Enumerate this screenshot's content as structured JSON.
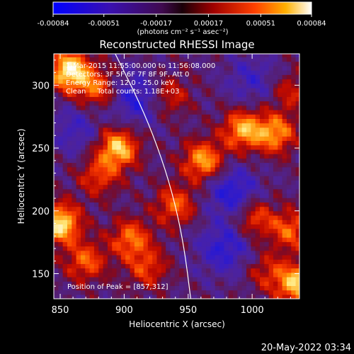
{
  "chart_data": {
    "type": "heatmap",
    "title": "Reconstructed RHESSI Image",
    "xlabel": "Heliocentric X (arcsec)",
    "ylabel": "Heliocentric Y (arcsec)",
    "xlim": [
      845,
      1037
    ],
    "ylim": [
      130,
      325
    ],
    "xticks": [
      850,
      900,
      950,
      1000
    ],
    "yticks": [
      150,
      200,
      250,
      300
    ],
    "colorbar": {
      "ticks": [
        "-0.00084",
        "-0.00051",
        "-0.00017",
        "0.00017",
        "0.00051",
        "0.00084"
      ],
      "units": "(photons cm⁻² s⁻¹ asec⁻²)",
      "range": [
        -0.00084,
        0.00084
      ]
    },
    "annotations": [
      "1-Mar-2015 11:55:00.000 to 11:56:08.000",
      "Detectors: 3F 5F 6F 7F 8F 9F, Att 0",
      "Energy Range: 12.0 - 25.0 keV",
      "Clean     Total counts: 1.18E+03"
    ],
    "peak_label": "Position of Peak = [857,312]",
    "peak": [
      857,
      312
    ],
    "hotspots": [
      {
        "x": 857,
        "y": 312,
        "v": 1.0
      },
      {
        "x": 850,
        "y": 190,
        "v": 0.95
      },
      {
        "x": 1035,
        "y": 142,
        "v": 0.85
      },
      {
        "x": 895,
        "y": 250,
        "v": 0.85
      },
      {
        "x": 993,
        "y": 265,
        "v": 0.75
      },
      {
        "x": 1018,
        "y": 262,
        "v": 0.7
      },
      {
        "x": 962,
        "y": 240,
        "v": 0.75
      },
      {
        "x": 878,
        "y": 298,
        "v": 0.55
      },
      {
        "x": 905,
        "y": 178,
        "v": 0.6
      },
      {
        "x": 870,
        "y": 160,
        "v": 0.55
      },
      {
        "x": 940,
        "y": 205,
        "v": 0.55
      },
      {
        "x": 1002,
        "y": 195,
        "v": 0.5
      },
      {
        "x": 1030,
        "y": 185,
        "v": 0.55
      },
      {
        "x": 918,
        "y": 155,
        "v": 0.45
      },
      {
        "x": 935,
        "y": 292,
        "v": 0.4
      },
      {
        "x": 1030,
        "y": 295,
        "v": 0.35
      },
      {
        "x": 880,
        "y": 228,
        "v": 0.45
      },
      {
        "x": 1012,
        "y": 152,
        "v": 0.35
      }
    ],
    "coldspots": [
      {
        "x": 910,
        "y": 290,
        "v": -0.45
      },
      {
        "x": 985,
        "y": 215,
        "v": -0.5
      },
      {
        "x": 978,
        "y": 170,
        "v": -0.45
      },
      {
        "x": 1000,
        "y": 305,
        "v": -0.3
      },
      {
        "x": 862,
        "y": 265,
        "v": -0.3
      }
    ],
    "limb_curve": [
      [
        893,
        325
      ],
      [
        915,
        280
      ],
      [
        930,
        240
      ],
      [
        940,
        205
      ],
      [
        947,
        170
      ],
      [
        952,
        130
      ]
    ]
  },
  "timestamp": "20-May-2022 03:34"
}
